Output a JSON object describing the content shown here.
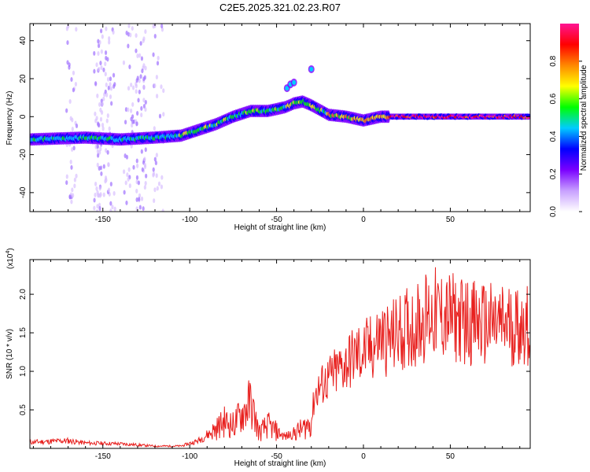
{
  "title": "C2E5.2025.321.02.23.R07",
  "chart_data": [
    {
      "type": "heatmap",
      "xlabel": "Height of straight line (km)",
      "ylabel": "Frequency (Hz)",
      "xlim": [
        -192,
        96
      ],
      "ylim": [
        -50,
        49
      ],
      "xticks": [
        -150,
        -100,
        -50,
        0,
        50
      ],
      "yticks": [
        -40,
        -20,
        0,
        20,
        40
      ],
      "grid": false,
      "ridge": {
        "x": [
          -192,
          -160,
          -140,
          -120,
          -105,
          -95,
          -85,
          -75,
          -65,
          -55,
          -45,
          -40,
          -35,
          -30,
          -20,
          -10,
          0,
          10,
          20,
          50,
          96
        ],
        "y": [
          -12,
          -11,
          -12,
          -11,
          -10,
          -7,
          -4,
          0,
          3,
          3,
          5,
          7,
          8,
          6,
          1,
          0,
          -2,
          0,
          0,
          0,
          0
        ]
      },
      "colorbar": {
        "label": "Normalized spectral amplitude",
        "range": [
          0,
          1
        ],
        "ticks": [
          "0.0",
          "0.2",
          "0.4",
          "0.6",
          "0.8"
        ],
        "colormap": [
          "#ffffff",
          "#c8a0ff",
          "#7a00ff",
          "#0000ff",
          "#00ccff",
          "#00ff00",
          "#ffff00",
          "#ff8800",
          "#ff0000",
          "#ff1493"
        ]
      }
    },
    {
      "type": "line",
      "xlabel": "Height of straight line (km)",
      "ylabel": "SNR (10 * v/v)",
      "y_multiplier": "(x10",
      "y_multiplier_exp": "4",
      "xlim": [
        -192,
        96
      ],
      "ylim": [
        0,
        2.45
      ],
      "xticks": [
        -150,
        -100,
        -50,
        0,
        50
      ],
      "yticks": [
        "0.5",
        "1.0",
        "1.5",
        "2.0"
      ],
      "grid": false,
      "series": [
        {
          "color": "#e8201e",
          "x": [
            -192,
            -170,
            -160,
            -140,
            -120,
            -105,
            -95,
            -85,
            -80,
            -75,
            -70,
            -65,
            -60,
            -55,
            -50,
            -45,
            -40,
            -35,
            -30,
            -28,
            -25,
            -20,
            -15,
            -10,
            -5,
            0,
            5,
            10,
            15,
            20,
            25,
            30,
            35,
            40,
            50,
            60,
            70,
            80,
            90,
            96
          ],
          "y": [
            0.08,
            0.1,
            0.07,
            0.06,
            0.03,
            0.03,
            0.1,
            0.25,
            0.35,
            0.3,
            0.45,
            0.6,
            0.2,
            0.3,
            0.22,
            0.15,
            0.2,
            0.25,
            0.35,
            0.7,
            0.8,
            0.9,
            1.0,
            1.1,
            1.2,
            1.25,
            1.3,
            1.45,
            1.4,
            1.5,
            1.55,
            1.6,
            1.7,
            1.75,
            1.7,
            1.65,
            1.6,
            1.6,
            1.6,
            1.6
          ]
        }
      ]
    }
  ]
}
